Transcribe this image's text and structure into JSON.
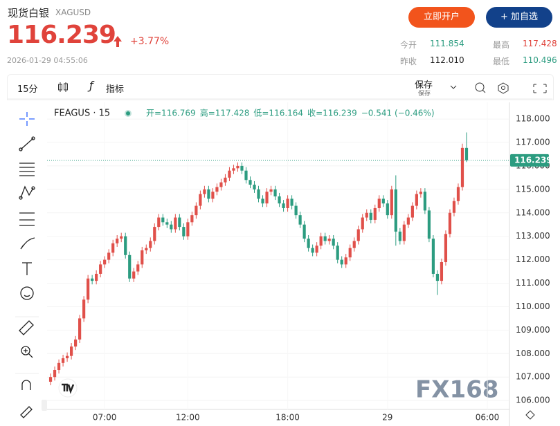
{
  "header": {
    "title": "现货白银",
    "symbol": "XAGUSD",
    "price": "116.239",
    "change": "+3.77%",
    "time": "2026-01-29 04:55:06",
    "buttons": [
      "立即开户",
      "+ 加自选"
    ],
    "stats": [
      {
        "label": "今开",
        "value": "111.854"
      },
      {
        "label": "最高",
        "value": "117.428"
      },
      {
        "label": "昨收",
        "value": "112.010"
      },
      {
        "label": "最低",
        "value": "110.496"
      }
    ]
  },
  "toolbar": {
    "interval": "15分",
    "indicators": "指标",
    "save": "保存",
    "save_sub": "保存"
  },
  "chart_data": {
    "type": "candlestick",
    "legend_title": "FEAGUS · 15",
    "ohlc_legend": [
      "开=116.769",
      "高=117.428",
      "低=116.164",
      "收=116.239",
      "−0.541 (−0.46%)"
    ],
    "watermark": "FX168",
    "last_price": 116.239,
    "up_color": "#e0504a",
    "down_color": "#2c9c80",
    "grid": true,
    "xlim": [
      3.54,
      31.33
    ],
    "xticks": [
      {
        "value": 7,
        "label": "07:00"
      },
      {
        "value": 12,
        "label": "12:00"
      },
      {
        "value": 18,
        "label": "18:00"
      },
      {
        "value": 24,
        "label": "29"
      },
      {
        "value": 30,
        "label": "06:00"
      }
    ],
    "ylim": [
      105.62,
      118.71
    ],
    "yticks": [
      {
        "value": 106,
        "label": "106.000"
      },
      {
        "value": 107,
        "label": "107.000"
      },
      {
        "value": 108,
        "label": "108.000"
      },
      {
        "value": 109,
        "label": "109.000"
      },
      {
        "value": 110,
        "label": "110.000"
      },
      {
        "value": 111,
        "label": "111.000"
      },
      {
        "value": 112,
        "label": "112.000"
      },
      {
        "value": 113,
        "label": "113.000"
      },
      {
        "value": 114,
        "label": "114.000"
      },
      {
        "value": 115,
        "label": "115.000"
      },
      {
        "value": 116,
        "label": "116.000"
      },
      {
        "value": 117,
        "label": "117.000"
      },
      {
        "value": 118,
        "label": "118.000"
      }
    ],
    "x": [
      3.75,
      4,
      4.25,
      4.5,
      4.75,
      5,
      5.25,
      5.5,
      5.75,
      6,
      6.25,
      6.5,
      6.75,
      7,
      7.25,
      7.5,
      7.75,
      8,
      8.25,
      8.5,
      8.75,
      9,
      9.25,
      9.5,
      9.75,
      10,
      10.25,
      10.5,
      10.75,
      11,
      11.25,
      11.5,
      11.75,
      12,
      12.25,
      12.5,
      12.75,
      13,
      13.25,
      13.5,
      13.75,
      14,
      14.25,
      14.5,
      14.75,
      15,
      15.25,
      15.5,
      15.75,
      16,
      16.25,
      16.5,
      16.75,
      17,
      17.25,
      17.5,
      17.75,
      18,
      18.25,
      18.5,
      18.75,
      19,
      19.25,
      19.5,
      19.75,
      20,
      20.25,
      20.5,
      20.75,
      21,
      21.25,
      21.5,
      21.75,
      22,
      22.25,
      22.5,
      22.75,
      23,
      23.25,
      23.5,
      23.75,
      24,
      24.25,
      24.5,
      24.75,
      25,
      25.25,
      25.5,
      25.75,
      26,
      26.25,
      26.5,
      26.75,
      27,
      27.25,
      27.5,
      27.75,
      28,
      28.25,
      28.5,
      28.75
    ],
    "open": [
      106.8,
      107.0,
      107.3,
      107.6,
      107.8,
      107.9,
      108.3,
      108.6,
      109.5,
      110.3,
      111.2,
      111.1,
      111.4,
      111.8,
      112.0,
      112.3,
      112.7,
      112.9,
      113.0,
      112.2,
      111.2,
      111.5,
      111.8,
      112.4,
      112.5,
      112.8,
      113.4,
      113.8,
      113.6,
      113.5,
      113.3,
      113.8,
      113.4,
      113.0,
      113.6,
      113.9,
      114.3,
      114.8,
      115.0,
      114.6,
      114.9,
      115.1,
      115.3,
      115.5,
      115.8,
      115.9,
      116.0,
      115.8,
      115.4,
      115.2,
      115.0,
      114.6,
      114.4,
      114.9,
      115.0,
      114.7,
      114.4,
      114.2,
      114.6,
      114.3,
      113.9,
      113.5,
      112.9,
      112.5,
      112.3,
      112.6,
      113.0,
      112.8,
      112.9,
      112.6,
      112.0,
      111.8,
      112.1,
      112.5,
      112.8,
      113.3,
      113.8,
      114.0,
      113.7,
      114.2,
      114.6,
      114.4,
      113.9,
      115.0,
      113.2,
      112.8,
      113.5,
      113.8,
      114.3,
      114.8,
      114.9,
      114.1,
      112.9,
      111.4,
      111.1,
      111.9,
      113.1,
      114.0,
      114.5,
      115.1,
      116.769
    ],
    "high": [
      107.15,
      107.45,
      107.75,
      107.95,
      108.05,
      108.45,
      108.75,
      109.65,
      110.45,
      111.35,
      111.35,
      111.55,
      111.95,
      112.15,
      112.45,
      112.85,
      113.05,
      113.15,
      113.15,
      112.35,
      111.65,
      111.95,
      112.55,
      112.65,
      112.95,
      113.55,
      113.95,
      113.95,
      113.75,
      113.65,
      113.95,
      113.95,
      113.55,
      113.75,
      114.05,
      114.45,
      114.95,
      115.15,
      115.15,
      115.05,
      115.25,
      115.45,
      115.65,
      115.95,
      116.05,
      116.15,
      116.15,
      115.95,
      115.55,
      115.35,
      115.15,
      114.75,
      115.05,
      115.15,
      115.15,
      114.85,
      114.55,
      114.75,
      114.75,
      114.45,
      114.05,
      113.65,
      113.05,
      112.65,
      112.75,
      113.15,
      113.15,
      113.05,
      113.05,
      112.75,
      112.15,
      112.25,
      112.65,
      112.95,
      113.45,
      113.95,
      114.15,
      114.15,
      114.35,
      114.75,
      114.75,
      114.55,
      115.15,
      115.6,
      113.35,
      113.65,
      113.95,
      114.45,
      114.95,
      115.05,
      115.05,
      114.25,
      113.05,
      111.55,
      112.05,
      113.25,
      114.15,
      114.65,
      115.25,
      116.95,
      117.428
    ],
    "low": [
      106.65,
      106.85,
      107.15,
      107.45,
      107.65,
      107.75,
      108.15,
      108.45,
      109.35,
      110.15,
      110.95,
      110.95,
      111.25,
      111.65,
      111.85,
      112.15,
      112.55,
      112.75,
      112.05,
      111.05,
      111.05,
      111.35,
      111.65,
      112.25,
      112.35,
      112.65,
      113.25,
      113.45,
      113.35,
      113.15,
      113.15,
      113.25,
      112.85,
      112.85,
      113.45,
      113.75,
      114.15,
      114.65,
      114.45,
      114.45,
      114.75,
      114.95,
      115.15,
      115.35,
      115.65,
      115.75,
      115.65,
      115.25,
      115.05,
      114.85,
      114.45,
      114.25,
      114.25,
      114.75,
      114.55,
      114.25,
      114.05,
      114.05,
      114.15,
      113.75,
      113.35,
      112.75,
      112.35,
      112.15,
      112.15,
      112.45,
      112.65,
      112.65,
      112.45,
      111.85,
      111.65,
      111.65,
      111.95,
      112.35,
      112.65,
      113.15,
      113.65,
      113.55,
      113.55,
      114.05,
      114.25,
      113.75,
      113.75,
      112.6,
      112.65,
      112.65,
      113.35,
      113.65,
      114.15,
      114.65,
      113.95,
      112.75,
      111.25,
      110.5,
      110.95,
      111.75,
      112.95,
      113.85,
      114.35,
      114.95,
      116.164
    ],
    "close": [
      107.0,
      107.3,
      107.6,
      107.8,
      107.9,
      108.3,
      108.6,
      109.5,
      110.3,
      111.2,
      111.1,
      111.4,
      111.8,
      112.0,
      112.3,
      112.7,
      112.9,
      113.0,
      112.2,
      111.2,
      111.5,
      111.8,
      112.4,
      112.5,
      112.8,
      113.4,
      113.8,
      113.6,
      113.5,
      113.3,
      113.8,
      113.4,
      113.0,
      113.6,
      113.9,
      114.3,
      114.8,
      115.0,
      114.6,
      114.9,
      115.1,
      115.3,
      115.5,
      115.8,
      115.9,
      116.0,
      115.8,
      115.4,
      115.2,
      115.0,
      114.6,
      114.4,
      114.9,
      115.0,
      114.7,
      114.4,
      114.2,
      114.6,
      114.3,
      113.9,
      113.5,
      112.9,
      112.5,
      112.3,
      112.6,
      113.0,
      112.8,
      112.9,
      112.6,
      112.0,
      111.8,
      112.1,
      112.5,
      112.8,
      113.3,
      113.8,
      114.0,
      113.7,
      114.2,
      114.6,
      114.4,
      113.9,
      115.0,
      113.2,
      112.8,
      113.5,
      113.8,
      114.3,
      114.8,
      114.9,
      114.1,
      112.9,
      111.4,
      111.1,
      111.9,
      113.1,
      114.0,
      114.5,
      115.1,
      116.769,
      116.239
    ]
  }
}
